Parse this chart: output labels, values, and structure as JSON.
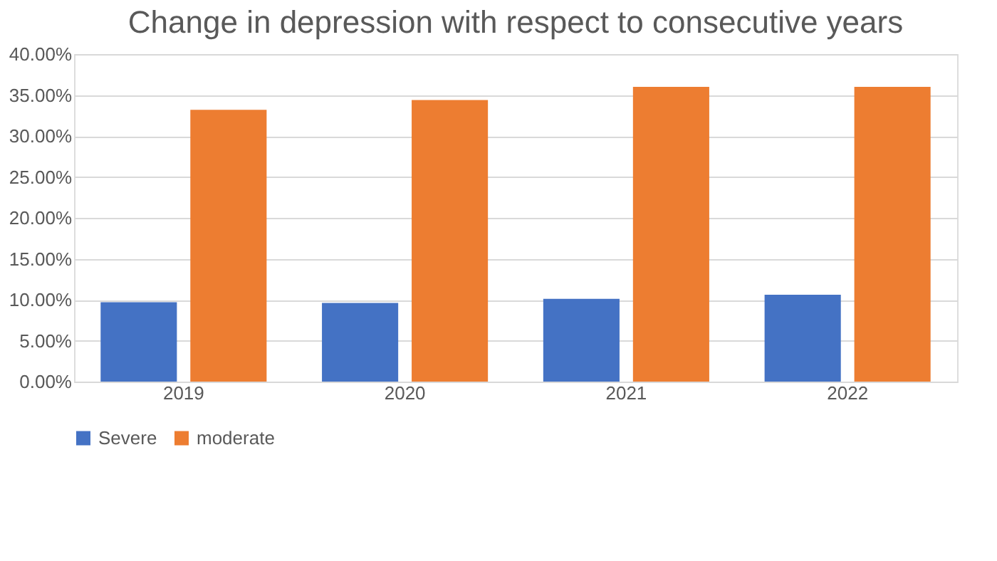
{
  "chart_data": {
    "type": "bar",
    "title": "Change in depression with respect to consecutive years",
    "categories": [
      "2019",
      "2020",
      "2021",
      "2022"
    ],
    "series": [
      {
        "name": "Severe",
        "color": "#4472c4",
        "values": [
          9.7,
          9.6,
          10.1,
          10.6
        ]
      },
      {
        "name": "moderate",
        "color": "#ed7d31",
        "values": [
          33.2,
          34.4,
          36.0,
          36.0
        ]
      }
    ],
    "ylim": [
      0,
      40
    ],
    "yticks": [
      {
        "value": 0,
        "label": "0.00%"
      },
      {
        "value": 5,
        "label": "5.00%"
      },
      {
        "value": 10,
        "label": "10.00%"
      },
      {
        "value": 15,
        "label": "15.00%"
      },
      {
        "value": 20,
        "label": "20.00%"
      },
      {
        "value": 25,
        "label": "25.00%"
      },
      {
        "value": 30,
        "label": "30.00%"
      },
      {
        "value": 35,
        "label": "35.00%"
      },
      {
        "value": 40,
        "label": "40.00%"
      }
    ],
    "grid": "y",
    "legend": "bottom"
  }
}
